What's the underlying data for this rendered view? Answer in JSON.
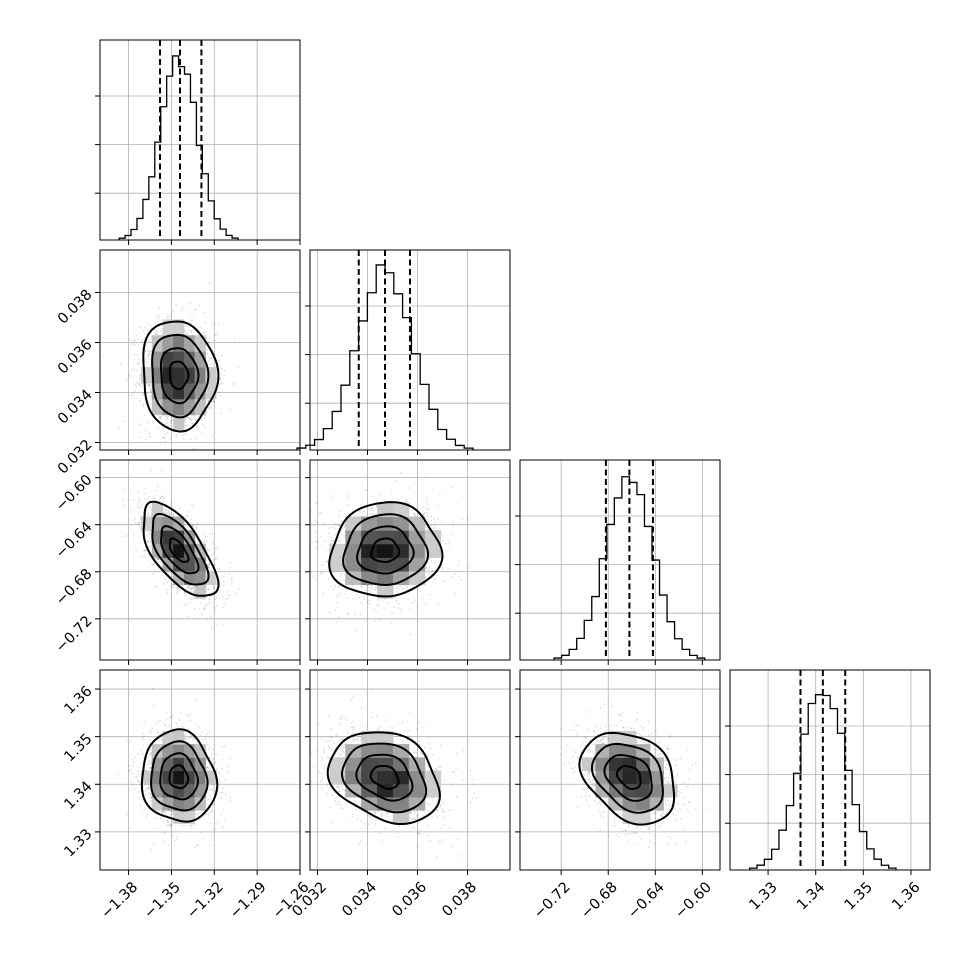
{
  "chart_data": {
    "type": "corner",
    "parameters": [
      {
        "id": "p0",
        "range": [
          -1.4,
          -1.26
        ],
        "mean": -1.345,
        "std": 0.013,
        "quantiles": [
          -1.358,
          -1.344,
          -1.329
        ],
        "x_ticks": [
          -1.38,
          -1.35,
          -1.32,
          -1.29,
          -1.26
        ],
        "x_tick_labels": [
          "−1.38",
          "−1.35",
          "−1.32",
          "−1.29",
          "−1.26"
        ]
      },
      {
        "id": "p1",
        "range": [
          0.0317,
          0.0397
        ],
        "mean": 0.0347,
        "std": 0.0011,
        "quantiles": [
          0.03365,
          0.0347,
          0.0357
        ],
        "x_ticks": [
          0.032,
          0.034,
          0.036,
          0.038
        ],
        "x_tick_labels": [
          "0.032",
          "0.034",
          "0.036",
          "0.038"
        ],
        "y_ticks": [
          0.032,
          0.034,
          0.036,
          0.038
        ],
        "y_tick_labels": [
          "0.032",
          "0.034",
          "0.036",
          "0.038"
        ]
      },
      {
        "id": "p2",
        "range": [
          -0.755,
          -0.585
        ],
        "mean": -0.662,
        "std": 0.02,
        "quantiles": [
          -0.682,
          -0.662,
          -0.642
        ],
        "x_ticks": [
          -0.72,
          -0.68,
          -0.64,
          -0.6
        ],
        "x_tick_labels": [
          "−0.72",
          "−0.68",
          "−0.64",
          "−0.60"
        ],
        "y_ticks": [
          -0.72,
          -0.68,
          -0.64,
          -0.6
        ],
        "y_tick_labels": [
          "−0.72",
          "−0.68",
          "−0.64",
          "−0.60"
        ]
      },
      {
        "id": "p3",
        "range": [
          1.322,
          1.364
        ],
        "mean": 1.3415,
        "std": 0.0048,
        "quantiles": [
          1.3368,
          1.3415,
          1.3462
        ],
        "x_ticks": [
          1.33,
          1.34,
          1.35,
          1.36
        ],
        "x_tick_labels": [
          "1.33",
          "1.34",
          "1.35",
          "1.36"
        ],
        "y_ticks": [
          1.33,
          1.34,
          1.35,
          1.36
        ],
        "y_tick_labels": [
          "1.33",
          "1.34",
          "1.35",
          "1.36"
        ]
      }
    ],
    "correlations": {
      "0-1": -0.05,
      "0-2": -0.65,
      "0-3": -0.08,
      "1-2": 0.05,
      "1-3": -0.25,
      "2-3": -0.3
    },
    "histogram_bins": 20,
    "contour_levels_sigma": [
      0.5,
      1.0,
      1.5,
      2.0
    ],
    "grid": true,
    "quantile_line_style": "dashed",
    "title": "",
    "xlabel": "",
    "ylabel": ""
  }
}
